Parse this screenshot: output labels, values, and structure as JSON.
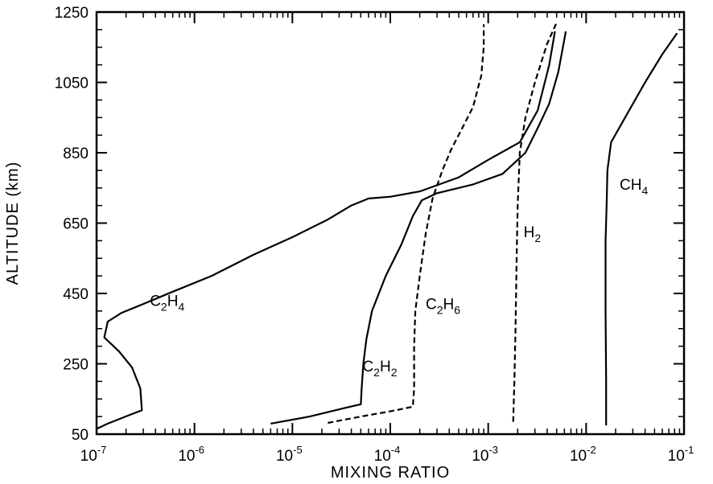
{
  "chart_data": {
    "type": "line",
    "title": "",
    "xlabel": "MIXING RATIO",
    "ylabel": "ALTITUDE (km)",
    "x_scale": "log",
    "xlim": [
      1e-07,
      0.1
    ],
    "ylim": [
      50,
      1250
    ],
    "x_ticks": [
      {
        "value": 1e-07,
        "base": "10",
        "exp": "-7"
      },
      {
        "value": 1e-06,
        "base": "10",
        "exp": "-6"
      },
      {
        "value": 1e-05,
        "base": "10",
        "exp": "-5"
      },
      {
        "value": 0.0001,
        "base": "10",
        "exp": "-4"
      },
      {
        "value": 0.001,
        "base": "10",
        "exp": "-3"
      },
      {
        "value": 0.01,
        "base": "10",
        "exp": "-2"
      },
      {
        "value": 0.1,
        "base": "10",
        "exp": "-1"
      }
    ],
    "y_ticks": [
      50,
      250,
      450,
      650,
      850,
      1050,
      1250
    ],
    "grid": false,
    "legend": "none",
    "series": [
      {
        "name": "C2H4",
        "label_parts": [
          "C",
          "2",
          "H",
          "4"
        ],
        "label_at": [
          3.5e-07,
          415
        ],
        "style": "solid",
        "points": [
          [
            1e-07,
            65
          ],
          [
            1.3e-07,
            80
          ],
          [
            2.2e-07,
            105
          ],
          [
            2.9e-07,
            118
          ],
          [
            2.8e-07,
            180
          ],
          [
            2.3e-07,
            240
          ],
          [
            1.7e-07,
            285
          ],
          [
            1.2e-07,
            325
          ],
          [
            1.3e-07,
            370
          ],
          [
            1.8e-07,
            395
          ],
          [
            3e-07,
            420
          ],
          [
            6e-07,
            455
          ],
          [
            1.5e-06,
            500
          ],
          [
            4e-06,
            560
          ],
          [
            1e-05,
            610
          ],
          [
            2.3e-05,
            660
          ],
          [
            4e-05,
            700
          ],
          [
            6e-05,
            720
          ],
          [
            0.0001,
            725
          ],
          [
            0.0002,
            740
          ],
          [
            0.0005,
            780
          ],
          [
            0.001,
            830
          ],
          [
            0.0021,
            880
          ],
          [
            0.0032,
            970
          ],
          [
            0.0042,
            1100
          ],
          [
            0.0048,
            1195
          ]
        ]
      },
      {
        "name": "C2H2",
        "label_parts": [
          "C",
          "2",
          "H",
          "2"
        ],
        "label_at": [
          5.2e-05,
          228
        ],
        "style": "solid",
        "points": [
          [
            6e-06,
            80
          ],
          [
            1.5e-05,
            100
          ],
          [
            3.5e-05,
            125
          ],
          [
            5e-05,
            135
          ],
          [
            5.1e-05,
            180
          ],
          [
            5.3e-05,
            250
          ],
          [
            5.7e-05,
            320
          ],
          [
            6.5e-05,
            400
          ],
          [
            9e-05,
            500
          ],
          [
            0.00013,
            590
          ],
          [
            0.00017,
            670
          ],
          [
            0.00021,
            715
          ],
          [
            0.0003,
            735
          ],
          [
            0.0007,
            760
          ],
          [
            0.0014,
            790
          ],
          [
            0.0024,
            850
          ],
          [
            0.0032,
            920
          ],
          [
            0.0042,
            990
          ],
          [
            0.0052,
            1080
          ],
          [
            0.0062,
            1195
          ]
        ]
      },
      {
        "name": "C2H6",
        "label_parts": [
          "C",
          "2",
          "H",
          "6"
        ],
        "label_at": [
          0.00023,
          405
        ],
        "style": "dashed",
        "points": [
          [
            2.3e-05,
            82
          ],
          [
            5e-05,
            100
          ],
          [
            0.0001,
            115
          ],
          [
            0.00017,
            128
          ],
          [
            0.000175,
            180
          ],
          [
            0.000175,
            300
          ],
          [
            0.00018,
            400
          ],
          [
            0.0002,
            500
          ],
          [
            0.00023,
            620
          ],
          [
            0.00027,
            720
          ],
          [
            0.00034,
            800
          ],
          [
            0.00042,
            860
          ],
          [
            0.00052,
            910
          ],
          [
            0.0007,
            980
          ],
          [
            0.00085,
            1070
          ],
          [
            0.0009,
            1150
          ],
          [
            0.0009,
            1215
          ]
        ]
      },
      {
        "name": "H2",
        "label_parts": [
          "H",
          "2"
        ],
        "label_at": [
          0.0023,
          610
        ],
        "style": "dashed",
        "points": [
          [
            0.0018,
            85
          ],
          [
            0.00185,
            200
          ],
          [
            0.0019,
            350
          ],
          [
            0.00195,
            550
          ],
          [
            0.002,
            700
          ],
          [
            0.0021,
            850
          ],
          [
            0.0024,
            950
          ],
          [
            0.003,
            1050
          ],
          [
            0.004,
            1160
          ],
          [
            0.005,
            1220
          ]
        ]
      },
      {
        "name": "CH4",
        "label_parts": [
          "C",
          "H",
          "4"
        ],
        "label_at": [
          0.022,
          745
        ],
        "style": "solid",
        "points": [
          [
            0.016,
            75
          ],
          [
            0.016,
            200
          ],
          [
            0.0158,
            400
          ],
          [
            0.0158,
            600
          ],
          [
            0.0162,
            700
          ],
          [
            0.0165,
            800
          ],
          [
            0.018,
            880
          ],
          [
            0.025,
            950
          ],
          [
            0.04,
            1050
          ],
          [
            0.06,
            1130
          ],
          [
            0.085,
            1190
          ]
        ]
      }
    ]
  }
}
